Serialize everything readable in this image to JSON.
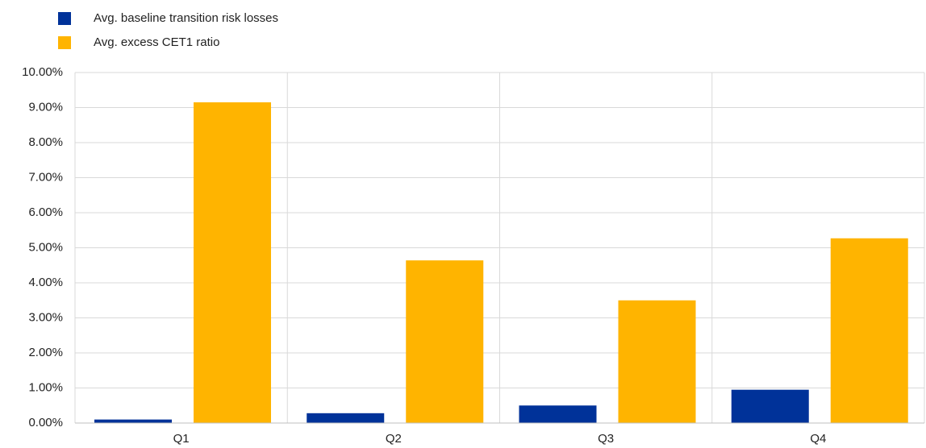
{
  "chart_data": {
    "type": "bar",
    "categories": [
      "Q1",
      "Q2",
      "Q3",
      "Q4"
    ],
    "series": [
      {
        "name": "Avg. baseline transition risk losses",
        "color": "#003299",
        "values": [
          0.1,
          0.28,
          0.5,
          0.95
        ]
      },
      {
        "name": "Avg. excess CET1 ratio",
        "color": "#ffb400",
        "values": [
          9.15,
          4.64,
          3.5,
          5.27
        ]
      }
    ],
    "ylim": [
      0,
      10
    ],
    "yticks": [
      {
        "value": 0,
        "label": "0.00%"
      },
      {
        "value": 1,
        "label": "1.00%"
      },
      {
        "value": 2,
        "label": "2.00%"
      },
      {
        "value": 3,
        "label": "3.00%"
      },
      {
        "value": 4,
        "label": "4.00%"
      },
      {
        "value": 5,
        "label": "5.00%"
      },
      {
        "value": 6,
        "label": "6.00%"
      },
      {
        "value": 7,
        "label": "7.00%"
      },
      {
        "value": 8,
        "label": "8.00%"
      },
      {
        "value": 9,
        "label": "9.00%"
      },
      {
        "value": 10,
        "label": "10.00%"
      }
    ],
    "grid": true
  }
}
